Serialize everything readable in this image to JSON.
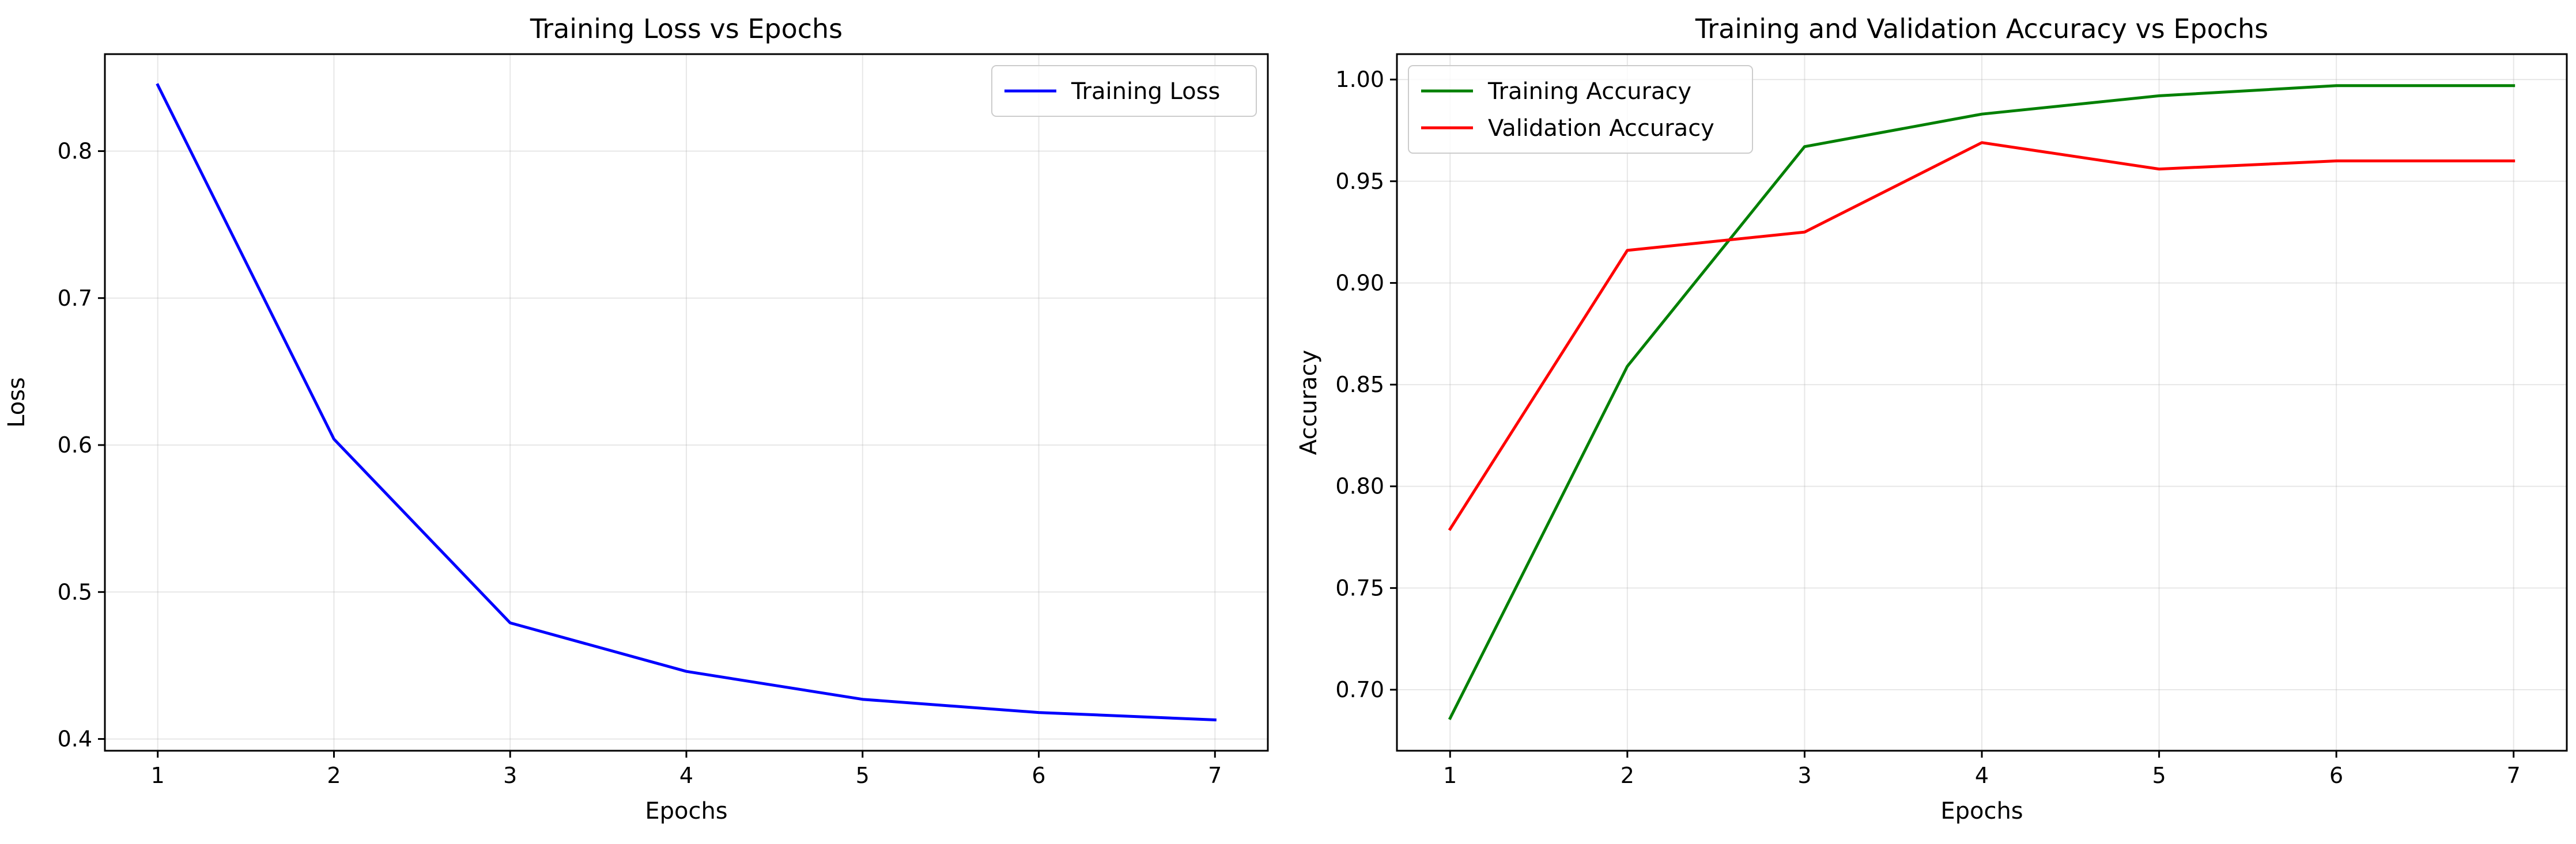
{
  "chart_data": [
    {
      "type": "line",
      "title": "Training Loss vs Epochs",
      "xlabel": "Epochs",
      "ylabel": "Loss",
      "x": [
        1,
        2,
        3,
        4,
        5,
        6,
        7
      ],
      "xlim": [
        0.7,
        7.3
      ],
      "ylim": [
        0.392,
        0.866
      ],
      "xticks": [
        1,
        2,
        3,
        4,
        5,
        6,
        7
      ],
      "yticks": [
        0.4,
        0.5,
        0.6,
        0.7,
        0.8
      ],
      "ytick_labels": [
        "0.4",
        "0.5",
        "0.6",
        "0.7",
        "0.8"
      ],
      "grid": true,
      "legend_position": "top-right",
      "series": [
        {
          "name": "Training Loss",
          "color": "#0000ff",
          "values": [
            0.845,
            0.604,
            0.479,
            0.446,
            0.427,
            0.418,
            0.413
          ]
        }
      ]
    },
    {
      "type": "line",
      "title": "Training and Validation Accuracy vs Epochs",
      "xlabel": "Epochs",
      "ylabel": "Accuracy",
      "x": [
        1,
        2,
        3,
        4,
        5,
        6,
        7
      ],
      "xlim": [
        0.7,
        7.3
      ],
      "ylim": [
        0.67,
        1.0125
      ],
      "xticks": [
        1,
        2,
        3,
        4,
        5,
        6,
        7
      ],
      "yticks": [
        0.7,
        0.75,
        0.8,
        0.85,
        0.9,
        0.95,
        1.0
      ],
      "ytick_labels": [
        "0.70",
        "0.75",
        "0.80",
        "0.85",
        "0.90",
        "0.95",
        "1.00"
      ],
      "grid": true,
      "legend_position": "top-left",
      "series": [
        {
          "name": "Training Accuracy",
          "color": "#008000",
          "values": [
            0.686,
            0.859,
            0.967,
            0.983,
            0.992,
            0.997,
            0.997
          ]
        },
        {
          "name": "Validation Accuracy",
          "color": "#ff0000",
          "values": [
            0.779,
            0.916,
            0.925,
            0.969,
            0.956,
            0.96,
            0.96
          ]
        }
      ]
    }
  ]
}
